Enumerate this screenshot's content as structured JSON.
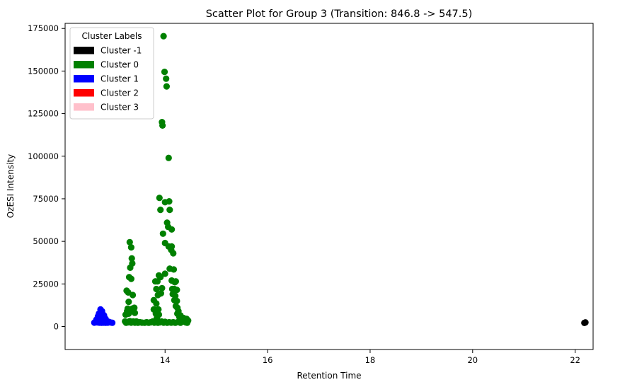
{
  "chart_data": {
    "type": "scatter",
    "title": "Scatter Plot for Group 3 (Transition: 846.8 -> 547.5)",
    "xlabel": "Retention Time",
    "ylabel": "OzESI Intensity",
    "xlim": [
      12.05,
      22.35
    ],
    "ylim": [
      -13500,
      178000
    ],
    "xticks": [
      14,
      16,
      18,
      20,
      22
    ],
    "yticks": [
      0,
      25000,
      50000,
      75000,
      100000,
      125000,
      150000,
      175000
    ],
    "grid": false,
    "legend": {
      "title": "Cluster Labels",
      "placement": "top-left",
      "entries": [
        {
          "label": "Cluster -1",
          "color": "#000000"
        },
        {
          "label": "Cluster 0",
          "color": "#008000"
        },
        {
          "label": "Cluster 1",
          "color": "#0000ff"
        },
        {
          "label": "Cluster 2",
          "color": "#ff0000"
        },
        {
          "label": "Cluster 3",
          "color": "#ffc0cb"
        }
      ]
    },
    "series": [
      {
        "name": "Cluster -1",
        "color": "#000000",
        "points": [
          [
            22.18,
            2100
          ],
          [
            22.2,
            2400
          ]
        ]
      },
      {
        "name": "Cluster 0",
        "color": "#008000",
        "points": [
          [
            13.97,
            170500
          ],
          [
            13.99,
            149500
          ],
          [
            14.02,
            145500
          ],
          [
            14.03,
            141000
          ],
          [
            13.94,
            120000
          ],
          [
            13.95,
            118000
          ],
          [
            14.07,
            99000
          ],
          [
            13.89,
            75500
          ],
          [
            14.0,
            73000
          ],
          [
            14.08,
            73500
          ],
          [
            13.91,
            68500
          ],
          [
            14.09,
            68500
          ],
          [
            14.04,
            61000
          ],
          [
            14.06,
            58500
          ],
          [
            14.13,
            57000
          ],
          [
            13.96,
            54500
          ],
          [
            13.31,
            49500
          ],
          [
            13.34,
            46500
          ],
          [
            14.0,
            49000
          ],
          [
            14.07,
            47000
          ],
          [
            14.13,
            47000
          ],
          [
            14.12,
            45000
          ],
          [
            14.16,
            43000
          ],
          [
            13.35,
            40000
          ],
          [
            13.36,
            37000
          ],
          [
            13.32,
            34500
          ],
          [
            14.09,
            34000
          ],
          [
            14.17,
            33500
          ],
          [
            13.3,
            29000
          ],
          [
            13.34,
            28000
          ],
          [
            13.88,
            30000
          ],
          [
            13.91,
            29000
          ],
          [
            14.0,
            31000
          ],
          [
            13.81,
            26500
          ],
          [
            13.85,
            26500
          ],
          [
            14.13,
            27000
          ],
          [
            14.21,
            26500
          ],
          [
            14.19,
            26000
          ],
          [
            13.83,
            22000
          ],
          [
            13.94,
            22500
          ],
          [
            14.14,
            22000
          ],
          [
            14.18,
            22000
          ],
          [
            14.23,
            21500
          ],
          [
            13.25,
            21000
          ],
          [
            13.28,
            20000
          ],
          [
            13.37,
            18500
          ],
          [
            13.86,
            18500
          ],
          [
            13.92,
            19500
          ],
          [
            14.15,
            19000
          ],
          [
            14.2,
            18000
          ],
          [
            14.18,
            15500
          ],
          [
            14.23,
            15000
          ],
          [
            13.29,
            14500
          ],
          [
            13.78,
            15500
          ],
          [
            13.83,
            13500
          ],
          [
            14.21,
            12000
          ],
          [
            14.24,
            11000
          ],
          [
            13.27,
            10500
          ],
          [
            13.36,
            10500
          ],
          [
            13.4,
            11000
          ],
          [
            13.26,
            9000
          ],
          [
            13.34,
            9000
          ],
          [
            13.38,
            9500
          ],
          [
            13.78,
            10000
          ],
          [
            13.87,
            10000
          ],
          [
            14.26,
            9000
          ],
          [
            14.24,
            7500
          ],
          [
            14.3,
            6500
          ],
          [
            13.23,
            7000
          ],
          [
            13.29,
            7500
          ],
          [
            13.41,
            8000
          ],
          [
            13.82,
            7500
          ],
          [
            13.88,
            7000
          ],
          [
            13.84,
            5000
          ],
          [
            14.28,
            5500
          ],
          [
            14.36,
            5000
          ],
          [
            14.42,
            4500
          ],
          [
            13.22,
            3000
          ],
          [
            13.24,
            2200
          ],
          [
            13.28,
            2500
          ],
          [
            13.31,
            3200
          ],
          [
            13.34,
            2300
          ],
          [
            13.38,
            3000
          ],
          [
            13.41,
            2300
          ],
          [
            13.44,
            3000
          ],
          [
            13.47,
            2200
          ],
          [
            13.51,
            2500
          ],
          [
            13.55,
            2300
          ],
          [
            13.6,
            2200
          ],
          [
            13.64,
            2500
          ],
          [
            13.68,
            2200
          ],
          [
            13.72,
            2500
          ],
          [
            13.76,
            3000
          ],
          [
            13.79,
            2300
          ],
          [
            13.82,
            2800
          ],
          [
            13.86,
            2200
          ],
          [
            13.9,
            2500
          ],
          [
            13.93,
            3000
          ],
          [
            13.97,
            2300
          ],
          [
            14.0,
            2800
          ],
          [
            14.04,
            2200
          ],
          [
            14.08,
            2500
          ],
          [
            14.12,
            2300
          ],
          [
            14.16,
            2500
          ],
          [
            14.2,
            2200
          ],
          [
            14.25,
            2600
          ],
          [
            14.3,
            2200
          ],
          [
            14.35,
            3000
          ],
          [
            14.4,
            2500
          ],
          [
            14.43,
            2200
          ],
          [
            14.45,
            3500
          ]
        ]
      },
      {
        "name": "Cluster 1",
        "color": "#0000ff",
        "points": [
          [
            12.74,
            10000
          ],
          [
            12.77,
            9000
          ],
          [
            12.71,
            7500
          ],
          [
            12.78,
            7500
          ],
          [
            12.81,
            6500
          ],
          [
            12.69,
            6000
          ],
          [
            12.73,
            5500
          ],
          [
            12.76,
            5000
          ],
          [
            12.8,
            5000
          ],
          [
            12.84,
            4500
          ],
          [
            12.66,
            4000
          ],
          [
            12.7,
            3500
          ],
          [
            12.74,
            3000
          ],
          [
            12.78,
            3200
          ],
          [
            12.82,
            3000
          ],
          [
            12.86,
            3000
          ],
          [
            12.9,
            2800
          ],
          [
            12.64,
            2600
          ],
          [
            12.68,
            2400
          ],
          [
            12.72,
            2300
          ],
          [
            12.76,
            2200
          ],
          [
            12.8,
            2300
          ],
          [
            12.84,
            2200
          ],
          [
            12.88,
            2300
          ],
          [
            12.93,
            2400
          ],
          [
            12.97,
            2200
          ],
          [
            12.62,
            2300
          ]
        ]
      },
      {
        "name": "Cluster 2",
        "color": "#ff0000",
        "points": []
      },
      {
        "name": "Cluster 3",
        "color": "#ffc0cb",
        "points": []
      }
    ]
  }
}
